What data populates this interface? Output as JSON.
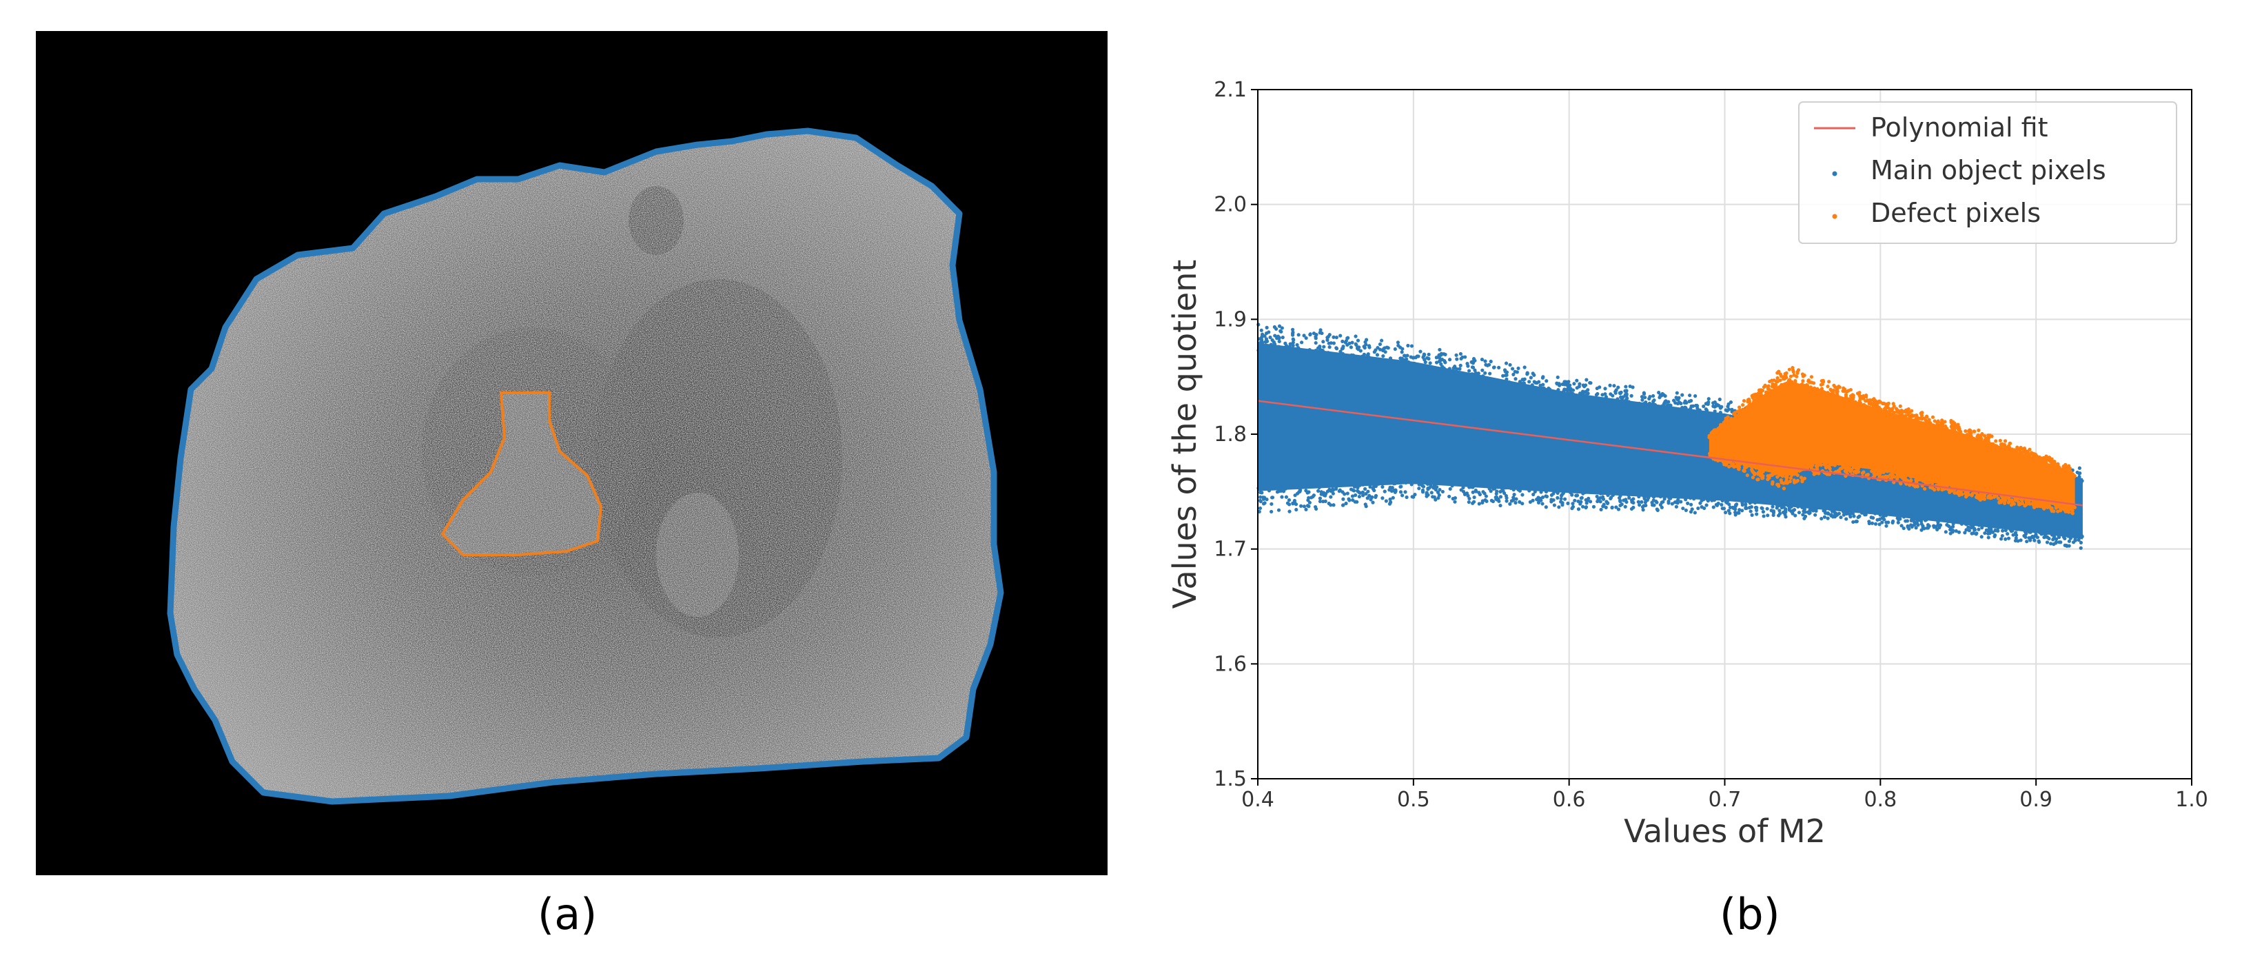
{
  "panel_a": {
    "caption": "(a)",
    "background_color": "#000000",
    "object_outline_color": "#2b7bba",
    "defect_outline_color": "#f07f1e"
  },
  "panel_b": {
    "caption": "(b)"
  },
  "chart_data": {
    "type": "scatter",
    "title": "",
    "xlabel": "Values of M2",
    "ylabel": "Values of the quotient",
    "xlim": [
      0.4,
      1.0
    ],
    "ylim": [
      1.5,
      2.1
    ],
    "x_ticks": [
      0.4,
      0.5,
      0.6,
      0.7,
      0.8,
      0.9,
      1.0
    ],
    "x_tick_labels": [
      "0.4",
      "0.5",
      "0.6",
      "0.7",
      "0.8",
      "0.9",
      "1.0"
    ],
    "y_ticks": [
      1.5,
      1.6,
      1.7,
      1.8,
      1.9,
      2.0,
      2.1
    ],
    "y_tick_labels": [
      "1.5",
      "1.6",
      "1.7",
      "1.8",
      "1.9",
      "2.0",
      "2.1"
    ],
    "grid": true,
    "legend_position": "top-right",
    "series": [
      {
        "name": "Polynomial fit",
        "kind": "line",
        "color": "#e8605a",
        "x": [
          0.4,
          0.5,
          0.6,
          0.7,
          0.8,
          0.93
        ],
        "y": [
          1.829,
          1.812,
          1.795,
          1.778,
          1.761,
          1.738
        ]
      },
      {
        "name": "Main object pixels",
        "kind": "scatter-band",
        "color": "#2b7bba",
        "x": [
          0.4,
          0.5,
          0.6,
          0.7,
          0.8,
          0.9,
          0.93
        ],
        "y_upper": [
          1.9,
          1.88,
          1.85,
          1.83,
          1.8,
          1.78,
          1.77
        ],
        "y_lower": [
          1.73,
          1.74,
          1.735,
          1.73,
          1.72,
          1.705,
          1.7
        ]
      },
      {
        "name": "Defect pixels",
        "kind": "scatter-cluster",
        "color": "#ff7f0e",
        "x": [
          0.69,
          0.72,
          0.74,
          0.76,
          0.8,
          0.85,
          0.9,
          0.925
        ],
        "y_upper": [
          1.8,
          1.84,
          1.86,
          1.85,
          1.83,
          1.81,
          1.785,
          1.77
        ],
        "y_lower": [
          1.78,
          1.76,
          1.75,
          1.765,
          1.76,
          1.745,
          1.735,
          1.73
        ]
      }
    ]
  }
}
